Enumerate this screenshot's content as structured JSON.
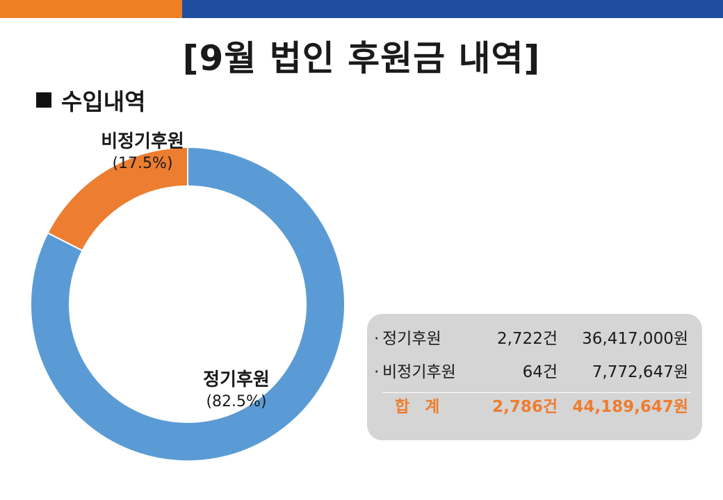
{
  "colors": {
    "accent_orange": "#f07f24",
    "accent_blue": "#1f4e9e",
    "series_regular": "#5b9bd5",
    "series_irregular": "#ed7d31",
    "total_text": "#ed7d31",
    "summary_bg": "#d5d5d5"
  },
  "page": {
    "title": "[9월 법인 후원금 내역]",
    "section_heading": "수입내역"
  },
  "chart_data": {
    "type": "pie",
    "donut": true,
    "categories": [
      "정기후원",
      "비정기후원"
    ],
    "values": [
      82.5,
      17.5
    ],
    "percent_labels": [
      "(82.5%)",
      "(17.5%)"
    ],
    "colors": [
      "#5b9bd5",
      "#ed7d31"
    ],
    "legend": "none"
  },
  "summary": {
    "bullet": "·",
    "rows": [
      {
        "label": "정기후원",
        "count": "2,722건",
        "amount": "36,417,000원"
      },
      {
        "label": "비정기후원",
        "count": "64건",
        "amount": "7,772,647원"
      }
    ],
    "total": {
      "label": "합계",
      "count": "2,786건",
      "amount": "44,189,647원"
    }
  }
}
